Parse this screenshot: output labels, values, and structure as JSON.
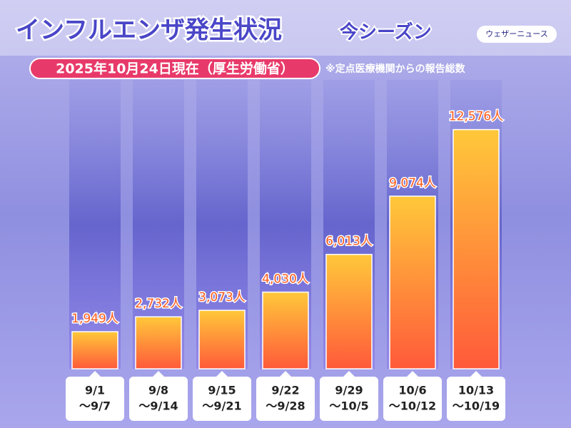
{
  "chart_data": {
    "type": "bar",
    "title": "インフルエンザ発生状況",
    "title_suffix": "今シーズン",
    "subtitle": "2025年10月24日現在（厚生労働省）",
    "note": "※定点医療機関からの報告総数",
    "brand": "ウェザーニュース",
    "categories": [
      [
        "9/1",
        "～9/7"
      ],
      [
        "9/8",
        "～9/14"
      ],
      [
        "9/15",
        "～9/21"
      ],
      [
        "9/22",
        "～9/28"
      ],
      [
        "9/29",
        "～10/5"
      ],
      [
        "10/6",
        "～10/12"
      ],
      [
        "10/13",
        "～10/19"
      ]
    ],
    "values": [
      1949,
      2732,
      3073,
      4030,
      6013,
      9074,
      12576
    ],
    "value_labels": [
      "1,949人",
      "2,732人",
      "3,073人",
      "4,030人",
      "6,013人",
      "9,074人",
      "12,576人"
    ],
    "color": "#ff8a3a",
    "ylim": [
      0,
      15000
    ]
  }
}
